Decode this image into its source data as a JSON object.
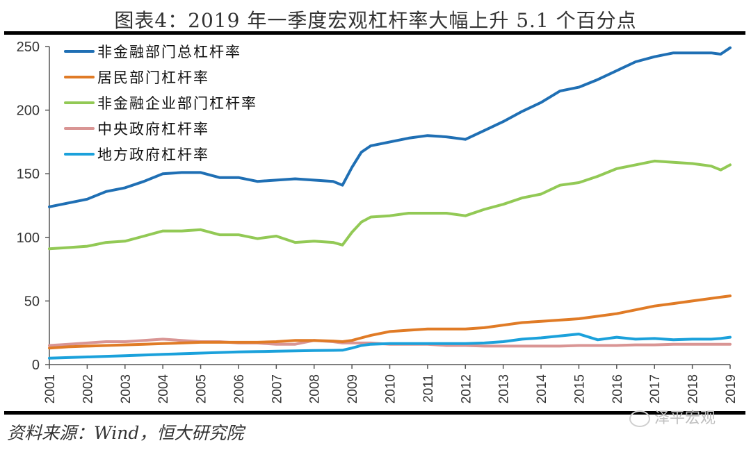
{
  "header": {
    "title": "图表4：2019 年一季度宏观杠杆率大幅上升 5.1 个百分点"
  },
  "footer": {
    "source": "资料来源：Wind，恒大研究院",
    "watermark": "泽平宏观"
  },
  "chart_data": {
    "type": "line",
    "title": "图表4：2019 年一季度宏观杠杆率大幅上升 5.1 个百分点",
    "xlabel": "",
    "ylabel": "",
    "ylim": [
      0,
      250
    ],
    "xlim": [
      2001,
      2019
    ],
    "yticks": [
      0,
      50,
      100,
      150,
      200,
      250
    ],
    "xticks": [
      "2001",
      "2002",
      "2003",
      "2004",
      "2005",
      "2006",
      "2007",
      "2008",
      "2009",
      "2010",
      "2011",
      "2012",
      "2013",
      "2014",
      "2015",
      "2016",
      "2017",
      "2018",
      "2019"
    ],
    "grid": false,
    "legend_position": "top-left",
    "x": [
      2001,
      2001.5,
      2002,
      2002.5,
      2003,
      2003.5,
      2004,
      2004.5,
      2005,
      2005.5,
      2006,
      2006.5,
      2007,
      2007.5,
      2008,
      2008.5,
      2008.75,
      2009,
      2009.25,
      2009.5,
      2010,
      2010.5,
      2011,
      2011.5,
      2012,
      2012.5,
      2013,
      2013.5,
      2014,
      2014.5,
      2015,
      2015.5,
      2016,
      2016.5,
      2017,
      2017.5,
      2018,
      2018.5,
      2018.75,
      2019
    ],
    "series": [
      {
        "name": "非金融部门总杠杆率",
        "color": "#1F6FB4",
        "values": [
          124,
          127,
          130,
          136,
          139,
          144,
          150,
          151,
          151,
          147,
          147,
          144,
          145,
          146,
          145,
          144,
          141,
          155,
          167,
          172,
          175,
          178,
          180,
          179,
          177,
          184,
          191,
          199,
          206,
          215,
          218,
          224,
          231,
          238,
          242,
          245,
          245,
          245,
          244,
          249
        ]
      },
      {
        "name": "居民部门杠杆率",
        "color": "#E07B26",
        "values": [
          13,
          14,
          14.5,
          15,
          15.5,
          16,
          16.5,
          17,
          17.5,
          17.5,
          17.5,
          17.5,
          18,
          19,
          19,
          18.5,
          18,
          19,
          21,
          23,
          26,
          27,
          28,
          28,
          28,
          29,
          31,
          33,
          34,
          35,
          36,
          38,
          40,
          43,
          46,
          48,
          50,
          52,
          53,
          54
        ]
      },
      {
        "name": "非金融企业部门杠杆率",
        "color": "#92C955",
        "values": [
          91,
          92,
          93,
          96,
          97,
          101,
          105,
          105,
          106,
          102,
          102,
          99,
          101,
          96,
          97,
          96,
          94,
          104,
          112,
          116,
          117,
          119,
          119,
          119,
          117,
          122,
          126,
          131,
          134,
          141,
          143,
          148,
          154,
          157,
          160,
          159,
          158,
          156,
          153,
          157
        ]
      },
      {
        "name": "中央政府杠杆率",
        "color": "#D99594",
        "values": [
          15,
          16,
          17,
          18,
          18,
          19,
          20,
          19,
          18,
          18,
          17,
          17,
          16,
          16,
          19,
          18,
          17,
          17,
          17,
          17,
          16,
          16,
          16,
          15,
          15,
          14.5,
          14.5,
          14.5,
          14.5,
          14.5,
          15,
          15,
          15,
          15.5,
          15.5,
          16,
          16,
          16,
          16,
          16
        ]
      },
      {
        "name": "地方政府杠杆率",
        "color": "#1BA1DB",
        "values": [
          5,
          5.5,
          6,
          6.5,
          7,
          7.5,
          8,
          8.5,
          9,
          9.5,
          10,
          10.2,
          10.5,
          10.8,
          11,
          11.2,
          11.3,
          13,
          15,
          16,
          16.5,
          16.5,
          16.5,
          16.5,
          16.5,
          17,
          18,
          20,
          21,
          22.5,
          24,
          19.5,
          21.5,
          20,
          20.5,
          19.5,
          20,
          20,
          20.5,
          21.5
        ]
      }
    ]
  }
}
